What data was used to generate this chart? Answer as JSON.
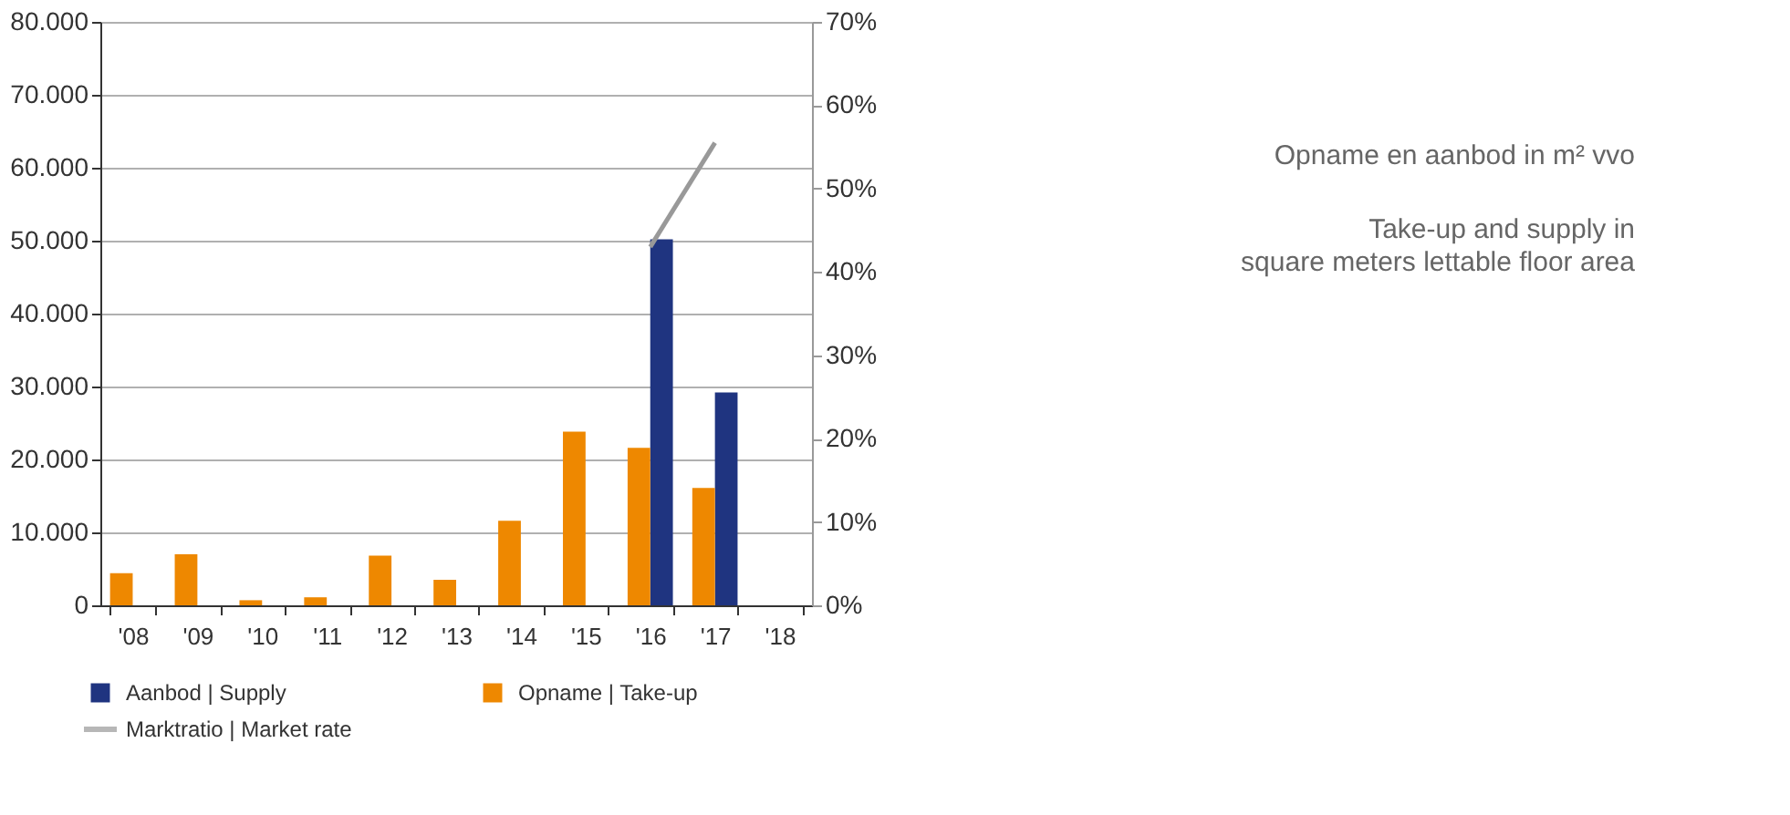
{
  "chart_data": {
    "type": "bar",
    "categories": [
      "'08",
      "'09",
      "'10",
      "'11",
      "'12",
      "'13",
      "'14",
      "'15",
      "'16",
      "'17",
      "'18"
    ],
    "series": [
      {
        "name": "Aanbod | Supply",
        "color": "#1f3480",
        "values": [
          null,
          null,
          null,
          null,
          null,
          null,
          null,
          null,
          50200,
          29200,
          null
        ]
      },
      {
        "name": "Opname | Take-up",
        "color": "#ee8800",
        "values": [
          4400,
          7000,
          700,
          1100,
          6800,
          3500,
          11600,
          23800,
          21600,
          16100,
          null
        ]
      },
      {
        "name": "Marktratio | Market rate",
        "color": "#999999",
        "type": "line",
        "axis": "y2",
        "values": [
          null,
          null,
          null,
          null,
          null,
          null,
          null,
          null,
          43,
          55.5,
          null
        ]
      }
    ],
    "ylim": [
      0,
      80000
    ],
    "yticks": [
      {
        "value": 0,
        "label": "0"
      },
      {
        "value": 10000,
        "label": "10.000"
      },
      {
        "value": 20000,
        "label": "20.000"
      },
      {
        "value": 30000,
        "label": "30.000"
      },
      {
        "value": 40000,
        "label": "40.000"
      },
      {
        "value": 50000,
        "label": "50.000"
      },
      {
        "value": 60000,
        "label": "60.000"
      },
      {
        "value": 70000,
        "label": "70.000"
      },
      {
        "value": 80000,
        "label": "80.000"
      }
    ],
    "y2lim": [
      0,
      70
    ],
    "y2ticks": [
      {
        "value": 0,
        "label": "0%"
      },
      {
        "value": 10,
        "label": "10%"
      },
      {
        "value": 20,
        "label": "20%"
      },
      {
        "value": 30,
        "label": "30%"
      },
      {
        "value": 40,
        "label": "40%"
      },
      {
        "value": 50,
        "label": "50%"
      },
      {
        "value": 60,
        "label": "60%"
      },
      {
        "value": 70,
        "label": "70%"
      }
    ],
    "grid": "y",
    "legend": "bottom left",
    "annotations": [
      "Opname en aanbod in m² vvo",
      "Take-up and supply in\nsquare meters lettable floor area"
    ]
  }
}
